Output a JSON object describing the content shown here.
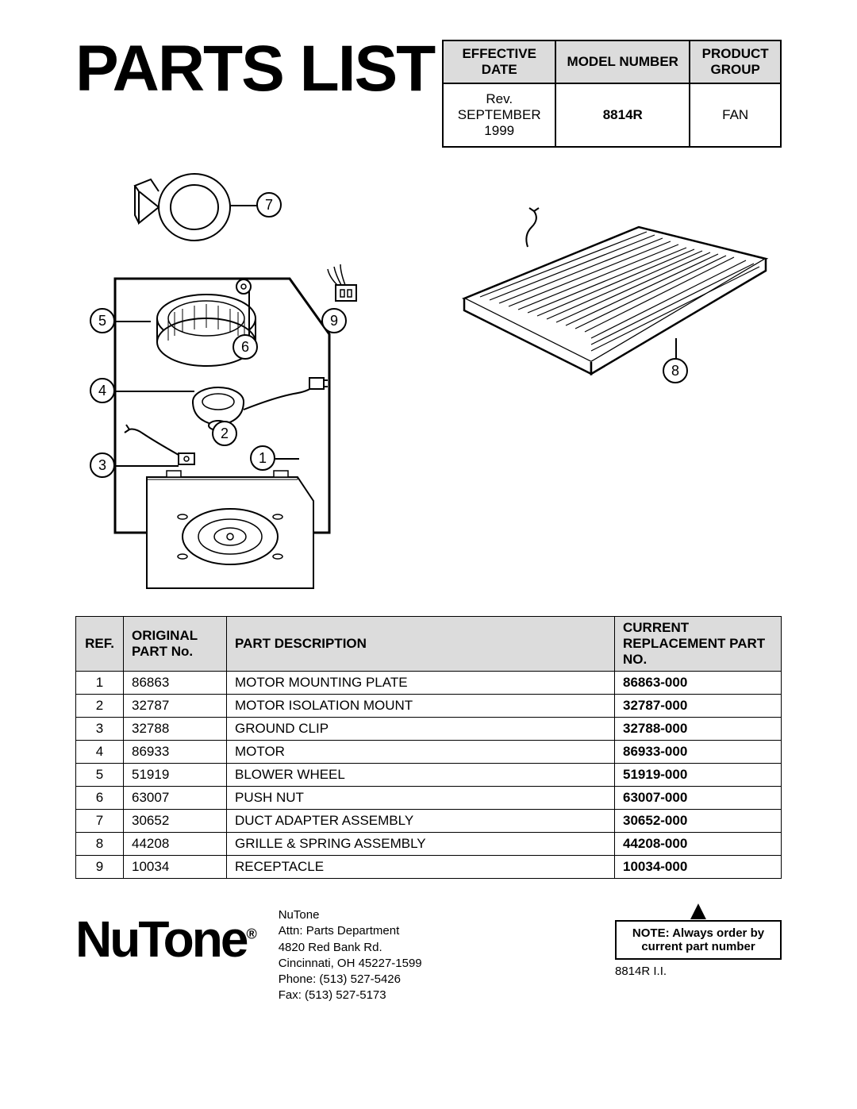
{
  "title": "PARTS LIST",
  "info": {
    "headers": [
      "EFFECTIVE DATE",
      "MODEL NUMBER",
      "PRODUCT GROUP"
    ],
    "effective_date": "Rev.\nSEPTEMBER\n1999",
    "model_number": "8814R",
    "product_group": "FAN"
  },
  "callouts": {
    "1": "1",
    "2": "2",
    "3": "3",
    "4": "4",
    "5": "5",
    "6": "6",
    "7": "7",
    "8": "8",
    "9": "9"
  },
  "parts_table": {
    "headers": [
      "REF.",
      "ORIGINAL PART No.",
      "PART DESCRIPTION",
      "CURRENT REPLACEMENT PART NO."
    ],
    "rows": [
      {
        "ref": "1",
        "orig": "86863",
        "desc": "MOTOR MOUNTING PLATE",
        "curr": "86863-000"
      },
      {
        "ref": "2",
        "orig": "32787",
        "desc": "MOTOR ISOLATION MOUNT",
        "curr": "32787-000"
      },
      {
        "ref": "3",
        "orig": "32788",
        "desc": "GROUND CLIP",
        "curr": "32788-000"
      },
      {
        "ref": "4",
        "orig": "86933",
        "desc": "MOTOR",
        "curr": "86933-000"
      },
      {
        "ref": "5",
        "orig": "51919",
        "desc": "BLOWER WHEEL",
        "curr": "51919-000"
      },
      {
        "ref": "6",
        "orig": "63007",
        "desc": "PUSH NUT",
        "curr": "63007-000"
      },
      {
        "ref": "7",
        "orig": "30652",
        "desc": "DUCT ADAPTER ASSEMBLY",
        "curr": "30652-000"
      },
      {
        "ref": "8",
        "orig": "44208",
        "desc": "GRILLE & SPRING ASSEMBLY",
        "curr": "44208-000"
      },
      {
        "ref": "9",
        "orig": "10034",
        "desc": "RECEPTACLE",
        "curr": "10034-000"
      }
    ]
  },
  "logo_text": "NuTone",
  "logo_reg": "®",
  "address": {
    "lines": [
      "NuTone",
      "Attn: Parts Department",
      "4820 Red Bank Rd.",
      "Cincinnati, OH  45227-1599",
      "Phone: (513) 527-5426",
      "Fax: (513) 527-5173"
    ]
  },
  "note": "NOTE: Always order by current part number",
  "doc_id": "8814R I.I.",
  "colors": {
    "header_bg": "#dcdcdc",
    "border": "#000000",
    "text": "#000000",
    "bg": "#ffffff"
  }
}
